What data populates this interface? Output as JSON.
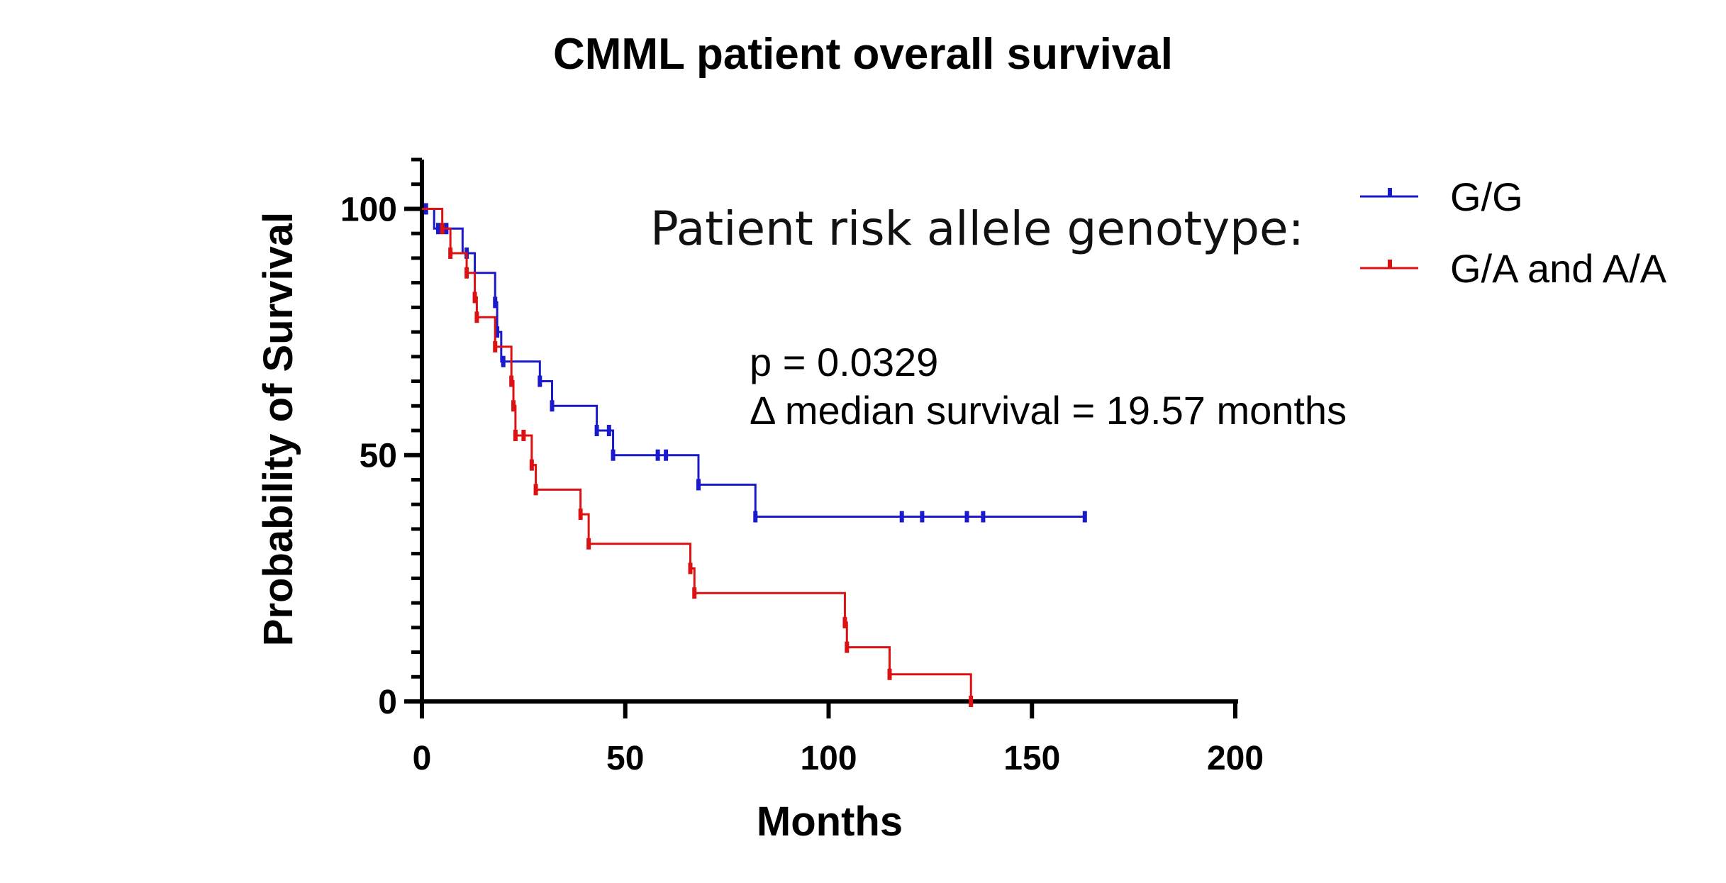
{
  "chart_data": {
    "type": "line",
    "subtype": "kaplan-meier",
    "title": "CMML patient overall survival",
    "xlabel": "Months",
    "ylabel": "Probability of Survival",
    "xlim": [
      0,
      200
    ],
    "ylim": [
      0,
      110
    ],
    "x_ticks": [
      "0",
      "50",
      "100",
      "150",
      "200"
    ],
    "y_ticks": [
      "0",
      "50",
      "100"
    ],
    "grid": false,
    "legend_title": "Patient risk allele genotype:",
    "legend_position": "top-right",
    "annotations": [
      "p = 0.0329",
      "Δ median survival = 19.57 months"
    ],
    "series": [
      {
        "name": "G/G",
        "color": "#1a1acc",
        "steps": [
          [
            0,
            100
          ],
          [
            3,
            96
          ],
          [
            10,
            91
          ],
          [
            13,
            87
          ],
          [
            18,
            81
          ],
          [
            18.5,
            75
          ],
          [
            19.5,
            69
          ],
          [
            29,
            65
          ],
          [
            32,
            60
          ],
          [
            43,
            55
          ],
          [
            47,
            50
          ],
          [
            68,
            44
          ],
          [
            82,
            37.5
          ],
          [
            163,
            37.5
          ]
        ],
        "censored": [
          [
            1,
            100
          ],
          [
            4,
            96
          ],
          [
            6,
            96
          ],
          [
            11,
            91
          ],
          [
            18,
            81
          ],
          [
            18.5,
            75
          ],
          [
            20,
            69
          ],
          [
            29,
            65
          ],
          [
            32,
            60
          ],
          [
            43,
            55
          ],
          [
            46,
            55
          ],
          [
            47,
            50
          ],
          [
            58,
            50
          ],
          [
            60,
            50
          ],
          [
            68,
            44
          ],
          [
            82,
            37.5
          ],
          [
            118,
            37.5
          ],
          [
            123,
            37.5
          ],
          [
            134,
            37.5
          ],
          [
            138,
            37.5
          ],
          [
            163,
            37.5
          ]
        ]
      },
      {
        "name": "G/A and A/A",
        "color": "#dd1111",
        "steps": [
          [
            0,
            100
          ],
          [
            5,
            96
          ],
          [
            7,
            91
          ],
          [
            11,
            87
          ],
          [
            13,
            82
          ],
          [
            13.5,
            78
          ],
          [
            18,
            72
          ],
          [
            22,
            65
          ],
          [
            22.5,
            60
          ],
          [
            23,
            54
          ],
          [
            27,
            48
          ],
          [
            28,
            43
          ],
          [
            39,
            38
          ],
          [
            41,
            32
          ],
          [
            66,
            27
          ],
          [
            67,
            22
          ],
          [
            104,
            16
          ],
          [
            104.5,
            11
          ],
          [
            115,
            5.5
          ],
          [
            135,
            0
          ]
        ],
        "censored": [
          [
            5,
            96
          ],
          [
            7,
            91
          ],
          [
            11,
            87
          ],
          [
            13,
            82
          ],
          [
            13.5,
            78
          ],
          [
            18,
            72
          ],
          [
            22,
            65
          ],
          [
            22.5,
            60
          ],
          [
            23,
            54
          ],
          [
            25,
            54
          ],
          [
            27,
            48
          ],
          [
            28,
            43
          ],
          [
            39,
            38
          ],
          [
            41,
            32
          ],
          [
            66,
            27
          ],
          [
            67,
            22
          ],
          [
            104,
            16
          ],
          [
            104.5,
            11
          ],
          [
            115,
            5.5
          ],
          [
            135,
            0
          ]
        ]
      }
    ]
  }
}
